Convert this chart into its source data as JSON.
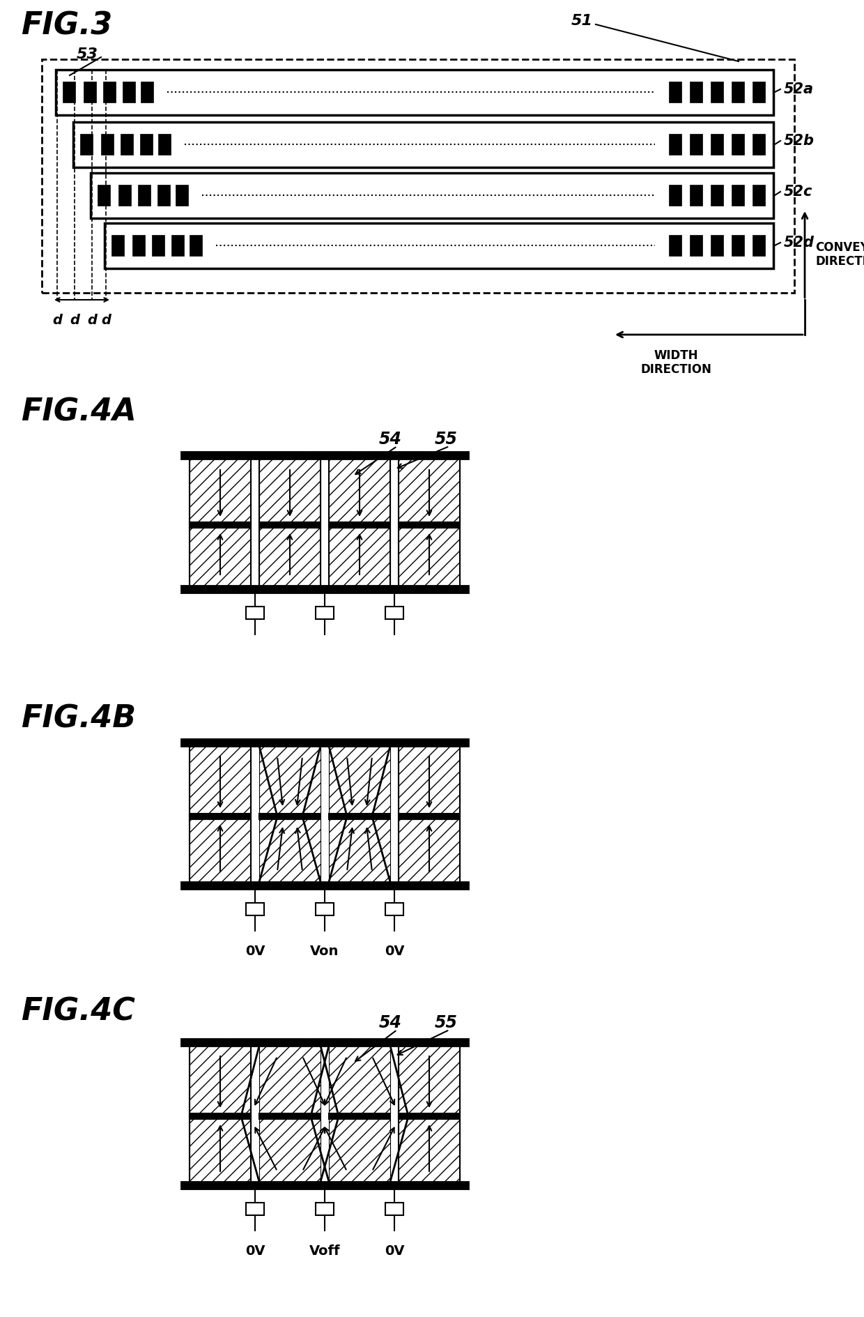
{
  "fig_width": 12.4,
  "fig_height": 18.89,
  "bg_color": "#ffffff",
  "fig3": {
    "title": "FIG.3",
    "label_51": "51",
    "label_53": "53",
    "labels_52": [
      "52a",
      "52b",
      "52c",
      "52d"
    ],
    "conveying_direction": "CONVEYING\nDIRECTION",
    "width_direction": "WIDTH\nDIRECTION"
  },
  "fig4a": {
    "title": "FIG.4A",
    "label_54": "54",
    "label_55": "55"
  },
  "fig4b": {
    "title": "FIG.4B",
    "labels": [
      "0V",
      "Von",
      "0V"
    ]
  },
  "fig4c": {
    "title": "FIG.4C",
    "label_54": "54",
    "label_55": "55",
    "labels": [
      "0V",
      "Voff",
      "0V"
    ]
  }
}
